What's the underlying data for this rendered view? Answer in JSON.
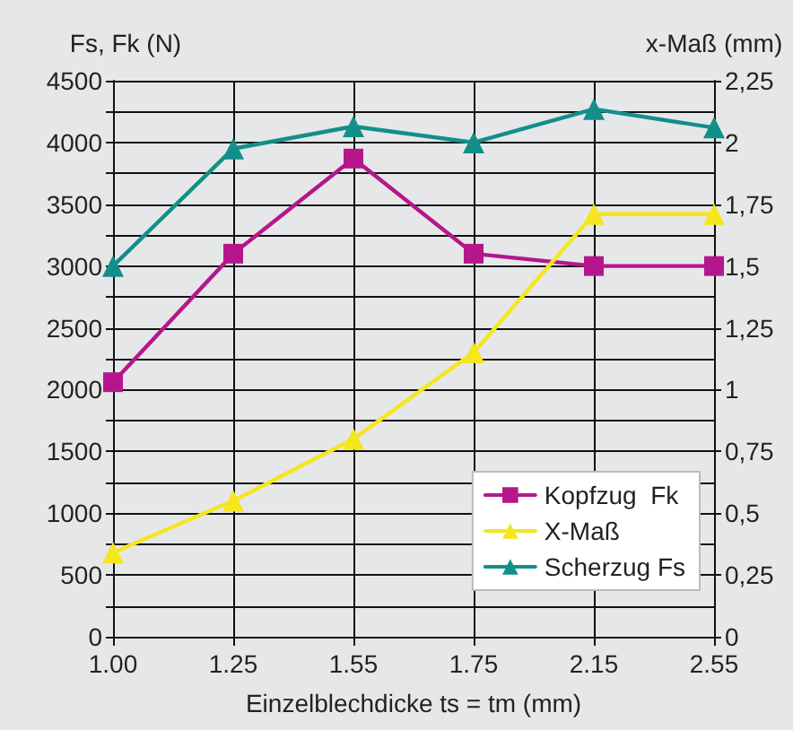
{
  "chart_data": {
    "type": "line",
    "xlabel": "Einzelblechdicke ts = tm (mm)",
    "ylabel": "Fs, Fk (N)",
    "y2label": "x-Maß (mm)",
    "categories": [
      "1.00",
      "1.25",
      "1.55",
      "1.75",
      "2.15",
      "2.55"
    ],
    "series": [
      {
        "name": "Kopfzug  Fk",
        "color": "#b5168c",
        "marker": "square",
        "values": [
          2060,
          3100,
          3870,
          3100,
          3000,
          3000
        ]
      },
      {
        "name": "X-Maß",
        "color": "#f5e61e",
        "marker": "triangle",
        "axis": "y2",
        "values": [
          0.34,
          0.55,
          0.8,
          1.15,
          1.71,
          1.71
        ]
      },
      {
        "name": "Scherzug Fs",
        "color": "#138f8a",
        "marker": "triangle",
        "values": [
          3000,
          3950,
          4130,
          4000,
          4270,
          4120
        ]
      }
    ],
    "ylim": [
      0,
      4500
    ],
    "yticks": [
      0,
      {
        "value": 250,
        "label": null
      },
      500,
      {
        "value": 750,
        "label": null
      },
      1000,
      {
        "value": 1250,
        "label": null
      },
      1500,
      {
        "value": 1750,
        "label": null
      },
      2000,
      {
        "value": 2250,
        "label": null
      },
      2500,
      {
        "value": 2750,
        "label": null
      },
      3000,
      {
        "value": 3250,
        "label": null
      },
      3500,
      {
        "value": 3750,
        "label": null
      },
      4000,
      {
        "value": 4250,
        "label": null
      },
      4500
    ],
    "y2lim": [
      0,
      2.25
    ],
    "y2ticks": [
      0,
      {
        "value": 0.25,
        "label": "0,25"
      },
      {
        "value": 0.5,
        "label": "0,5"
      },
      {
        "value": 0.75,
        "label": "0,75"
      },
      1,
      {
        "value": 1.25,
        "label": "1,25"
      },
      {
        "value": 1.5,
        "label": "1,5"
      },
      {
        "value": 1.75,
        "label": "1,75"
      },
      2,
      {
        "value": 2.25,
        "label": "2,25"
      }
    ],
    "grid": true,
    "legend": "bottom right",
    "line_style": "solid"
  }
}
